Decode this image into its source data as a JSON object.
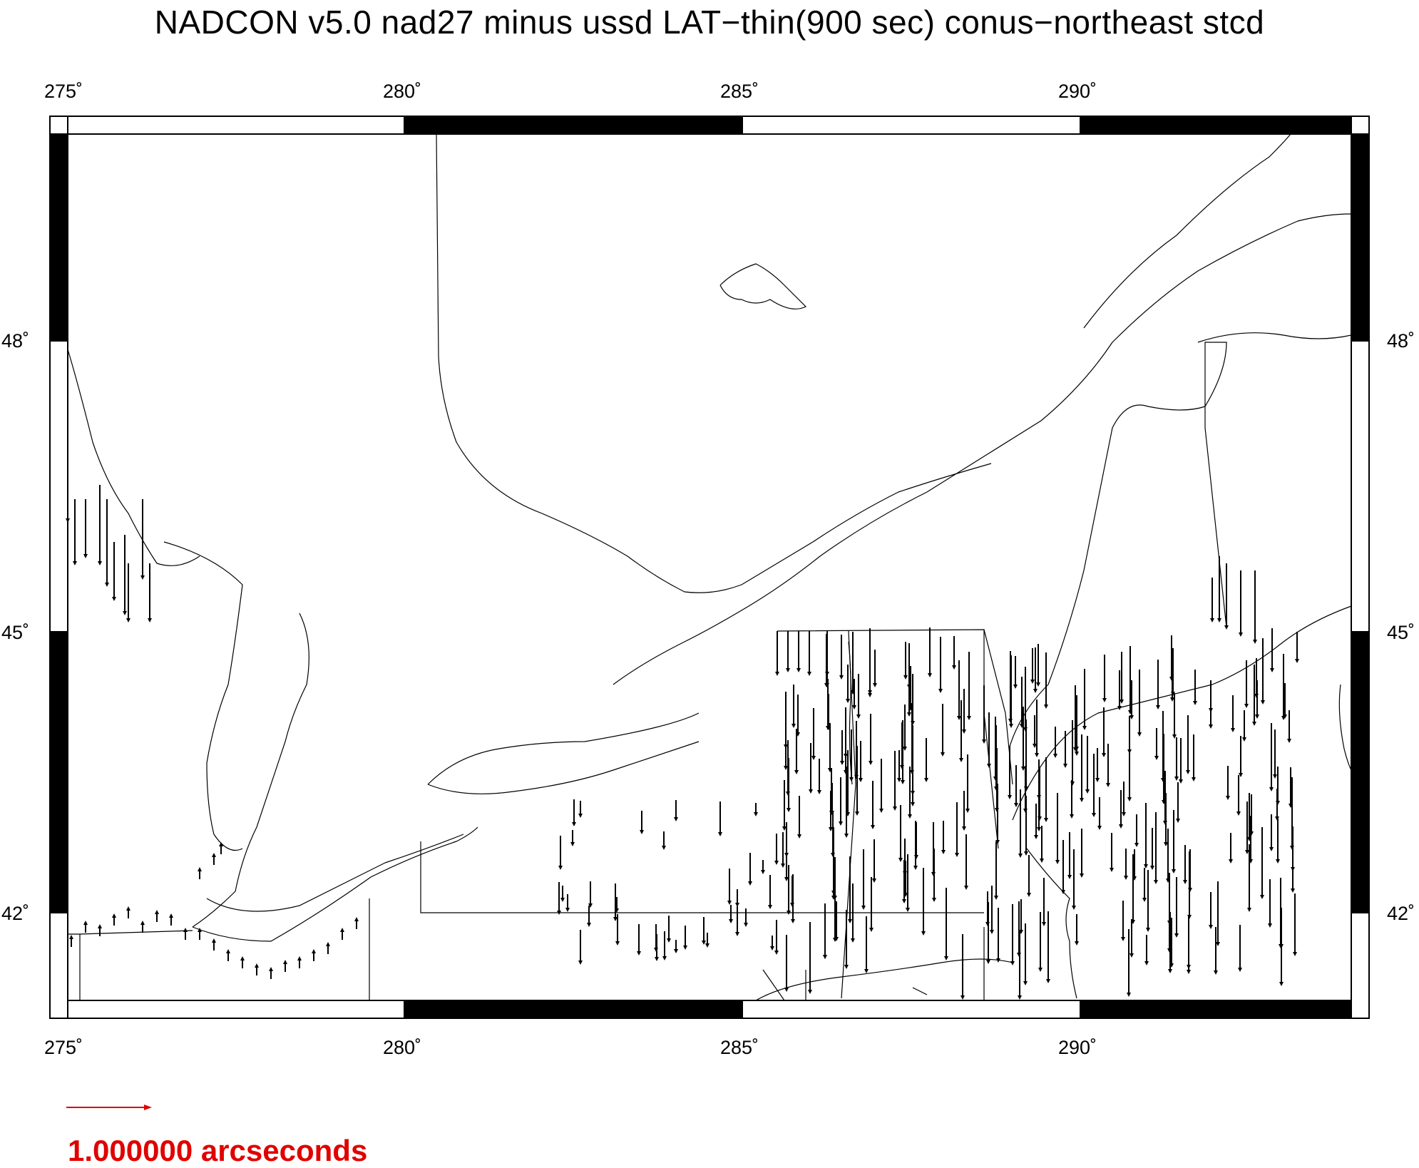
{
  "title": "NADCON v5.0 nad27 minus ussd LAT−thin(900 sec) conus−northeast stcd",
  "axes": {
    "x_ticks": [
      "275˚",
      "280˚",
      "285˚",
      "290˚"
    ],
    "y_ticks": [
      "48˚",
      "45˚",
      "42˚"
    ]
  },
  "scale": {
    "label": "1.000000 arcseconds",
    "color": "#e00000"
  },
  "vector_color": "#000000",
  "coast_color": "#000000"
}
